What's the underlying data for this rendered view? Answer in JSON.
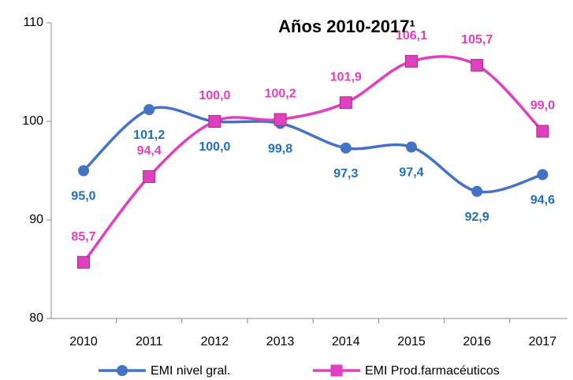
{
  "chart_data": {
    "type": "line",
    "title": "Años 2010-2017¹",
    "categories": [
      "2010",
      "2011",
      "2012",
      "2013",
      "2014",
      "2015",
      "2016",
      "2017"
    ],
    "series": [
      {
        "name": "EMI nivel gral.",
        "color": "#4472c4",
        "label_color": "#1f6fbf",
        "values": [
          95.0,
          101.2,
          100.0,
          99.8,
          97.3,
          97.4,
          92.9,
          94.6
        ],
        "value_labels": [
          "95,0",
          "101,2",
          "100,0",
          "99,8",
          "97,3",
          "97,4",
          "92,9",
          "94,6"
        ]
      },
      {
        "name": "EMI Prod.farmacéuticos",
        "color": "#e040c0",
        "label_color": "#e040c0",
        "values": [
          85.7,
          94.4,
          100.0,
          100.2,
          101.9,
          106.1,
          105.7,
          99.0
        ],
        "value_labels": [
          "85,7",
          "94,4",
          "100,0",
          "100,2",
          "101,9",
          "106,1",
          "105,7",
          "99,0"
        ]
      }
    ],
    "ylim": [
      80,
      110
    ],
    "yticks": [
      80,
      90,
      100,
      110
    ]
  }
}
